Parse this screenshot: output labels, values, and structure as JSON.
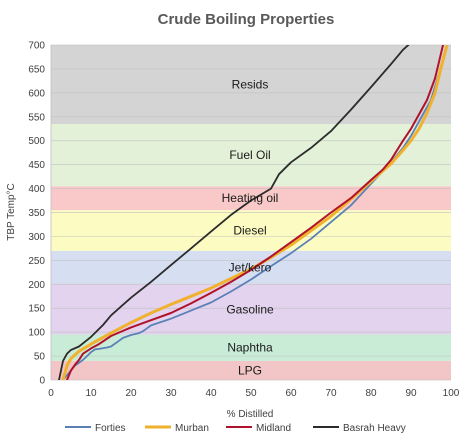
{
  "chart_data": {
    "type": "line",
    "title": "Crude Boiling Properties",
    "xlabel": "% Distilled",
    "ylabel": "TBP Temp°C",
    "xlim": [
      0,
      100
    ],
    "ylim": [
      0,
      700
    ],
    "x_ticks": [
      "0",
      "10",
      "20",
      "30",
      "40",
      "50",
      "60",
      "70",
      "80",
      "90",
      "100"
    ],
    "y_ticks": [
      "0",
      "50",
      "100",
      "150",
      "200",
      "250",
      "300",
      "350",
      "400",
      "450",
      "500",
      "550",
      "600",
      "650",
      "700"
    ],
    "legend_position": "bottom",
    "bands": [
      {
        "label": "LPG",
        "from": 0,
        "to": 40,
        "color": "#f2c6c6"
      },
      {
        "label": "Naphtha",
        "from": 40,
        "to": 95,
        "color": "#c9ecd6"
      },
      {
        "label": "Gasoline",
        "from": 95,
        "to": 200,
        "color": "#e3d3ee"
      },
      {
        "label": "Jet/kero",
        "from": 200,
        "to": 270,
        "color": "#d6dff2"
      },
      {
        "label": "Diesel",
        "from": 270,
        "to": 355,
        "color": "#fcfcc2"
      },
      {
        "label": "Heating oil",
        "from": 355,
        "to": 405,
        "color": "#f9c9c9"
      },
      {
        "label": "Fuel Oil",
        "from": 405,
        "to": 535,
        "color": "#e4f1d9"
      },
      {
        "label": "Resids",
        "from": 535,
        "to": 700,
        "color": "#d4d4d4"
      }
    ],
    "series": [
      {
        "name": "Forties",
        "color": "#5b80b6",
        "x": [
          3,
          4,
          6,
          8,
          9,
          10,
          11,
          12,
          14,
          15,
          16,
          17,
          18,
          20,
          22,
          23,
          24,
          25,
          30,
          35,
          40,
          45,
          50,
          55,
          60,
          65,
          70,
          75,
          80,
          82,
          85,
          88,
          90,
          92,
          95,
          97,
          99
        ],
        "y": [
          0,
          10,
          30,
          42,
          50,
          58,
          64,
          65,
          68,
          70,
          76,
          82,
          88,
          94,
          98,
          102,
          108,
          114,
          128,
          145,
          162,
          185,
          210,
          238,
          265,
          295,
          330,
          365,
          410,
          428,
          455,
          485,
          510,
          540,
          585,
          640,
          700
        ]
      },
      {
        "name": "Murban",
        "color": "#f0b12e",
        "x": [
          3,
          4,
          5,
          7,
          10,
          15,
          20,
          25,
          30,
          35,
          40,
          45,
          50,
          55,
          60,
          65,
          70,
          75,
          80,
          82,
          85,
          88,
          90,
          92,
          94,
          96,
          97,
          98,
          99
        ],
        "y": [
          0,
          30,
          45,
          60,
          75,
          98,
          120,
          140,
          158,
          175,
          192,
          212,
          232,
          256,
          282,
          312,
          342,
          378,
          415,
          430,
          452,
          480,
          500,
          525,
          558,
          600,
          635,
          668,
          700
        ]
      },
      {
        "name": "Midland",
        "color": "#b0122b",
        "x": [
          4,
          5,
          6,
          7,
          8,
          10,
          12,
          15,
          20,
          25,
          30,
          35,
          40,
          45,
          50,
          55,
          60,
          65,
          70,
          75,
          80,
          83,
          85,
          88,
          90,
          92,
          94,
          96,
          97,
          98
        ],
        "y": [
          0,
          20,
          32,
          42,
          55,
          66,
          75,
          92,
          110,
          125,
          140,
          160,
          182,
          205,
          230,
          258,
          288,
          318,
          350,
          380,
          418,
          440,
          460,
          500,
          525,
          555,
          585,
          630,
          665,
          700
        ]
      },
      {
        "name": "Basrah Heavy",
        "color": "#2b2b2b",
        "x": [
          2,
          3,
          4,
          5,
          7,
          10,
          13,
          15,
          20,
          25,
          30,
          35,
          40,
          45,
          50,
          53,
          55,
          57,
          60,
          65,
          70,
          75,
          80,
          85,
          88,
          90
        ],
        "y": [
          0,
          40,
          55,
          63,
          70,
          90,
          115,
          135,
          172,
          205,
          240,
          275,
          310,
          345,
          375,
          390,
          400,
          430,
          455,
          485,
          520,
          565,
          612,
          660,
          690,
          705
        ]
      }
    ]
  }
}
